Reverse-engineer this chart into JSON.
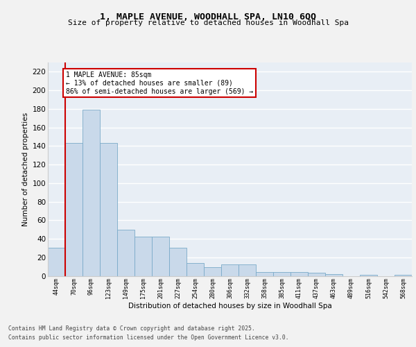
{
  "title": "1, MAPLE AVENUE, WOODHALL SPA, LN10 6QQ",
  "subtitle": "Size of property relative to detached houses in Woodhall Spa",
  "xlabel": "Distribution of detached houses by size in Woodhall Spa",
  "ylabel": "Number of detached properties",
  "categories": [
    "44sqm",
    "70sqm",
    "96sqm",
    "123sqm",
    "149sqm",
    "175sqm",
    "201sqm",
    "227sqm",
    "254sqm",
    "280sqm",
    "306sqm",
    "332sqm",
    "358sqm",
    "385sqm",
    "411sqm",
    "437sqm",
    "463sqm",
    "489sqm",
    "516sqm",
    "542sqm",
    "568sqm"
  ],
  "values": [
    30,
    143,
    179,
    143,
    50,
    42,
    42,
    30,
    14,
    9,
    12,
    12,
    4,
    4,
    4,
    3,
    2,
    0,
    1,
    0,
    1
  ],
  "bar_color": "#c9d9ea",
  "bar_edge_color": "#7aaac8",
  "vline_pos": 0.5,
  "vline_color": "#cc0000",
  "annotation_text": "1 MAPLE AVENUE: 85sqm\n← 13% of detached houses are smaller (89)\n86% of semi-detached houses are larger (569) →",
  "ylim": [
    0,
    230
  ],
  "yticks": [
    0,
    20,
    40,
    60,
    80,
    100,
    120,
    140,
    160,
    180,
    200,
    220
  ],
  "plot_bg": "#e8eef5",
  "grid_color": "#ffffff",
  "fig_bg": "#f2f2f2",
  "footer_line1": "Contains HM Land Registry data © Crown copyright and database right 2025.",
  "footer_line2": "Contains public sector information licensed under the Open Government Licence v3.0."
}
